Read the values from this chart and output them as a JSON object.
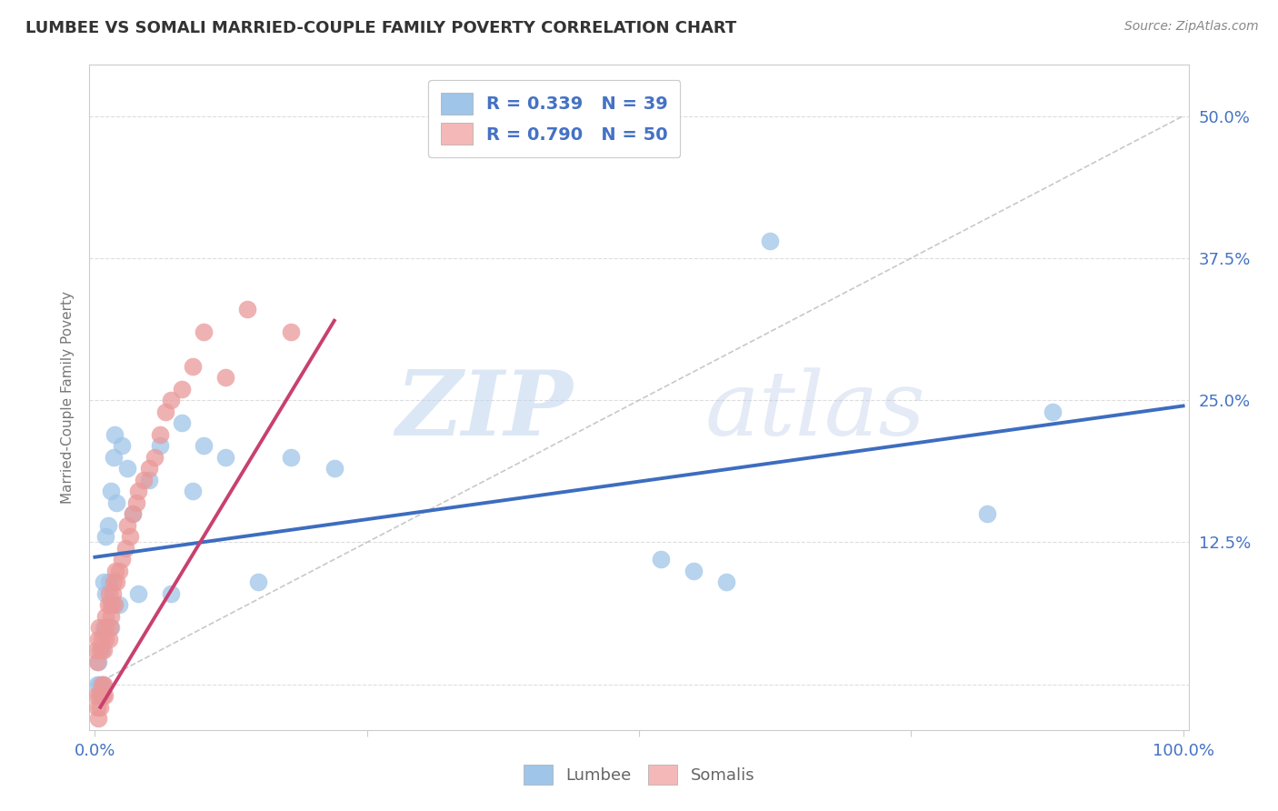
{
  "title": "LUMBEE VS SOMALI MARRIED-COUPLE FAMILY POVERTY CORRELATION CHART",
  "source_text": "Source: ZipAtlas.com",
  "ylabel": "Married-Couple Family Poverty",
  "xlim": [
    -0.005,
    1.005
  ],
  "ylim": [
    -0.04,
    0.545
  ],
  "ytick_positions": [
    0.0,
    0.125,
    0.25,
    0.375,
    0.5
  ],
  "yticklabels_right": [
    "",
    "12.5%",
    "25.0%",
    "37.5%",
    "50.0%"
  ],
  "xtick_positions": [
    0.0,
    0.25,
    0.5,
    0.75,
    1.0
  ],
  "xticklabels": [
    "0.0%",
    "",
    "",
    "",
    "100.0%"
  ],
  "legend_lumbee": "R = 0.339   N = 39",
  "legend_somali": "R = 0.790   N = 50",
  "watermark_zip": "ZIP",
  "watermark_atlas": "atlas",
  "lumbee_color": "#9fc5e8",
  "somali_color": "#ea9999",
  "lumbee_line_color": "#3d6dbf",
  "somali_line_color": "#c94070",
  "ref_line_color": "#bbbbbb",
  "grid_color": "#dddddd",
  "background_color": "#ffffff",
  "tick_color": "#4472c4",
  "lumbee_x": [
    0.002,
    0.003,
    0.004,
    0.005,
    0.006,
    0.007,
    0.008,
    0.008,
    0.01,
    0.01,
    0.012,
    0.013,
    0.015,
    0.015,
    0.016,
    0.017,
    0.018,
    0.02,
    0.022,
    0.025,
    0.03,
    0.035,
    0.04,
    0.05,
    0.06,
    0.07,
    0.08,
    0.09,
    0.1,
    0.12,
    0.15,
    0.18,
    0.22,
    0.52,
    0.55,
    0.58,
    0.62,
    0.82,
    0.88
  ],
  "lumbee_y": [
    0.0,
    0.02,
    0.0,
    -0.01,
    0.03,
    0.0,
    0.05,
    0.09,
    0.08,
    0.13,
    0.14,
    0.09,
    0.05,
    0.17,
    0.07,
    0.2,
    0.22,
    0.16,
    0.07,
    0.21,
    0.19,
    0.15,
    0.08,
    0.18,
    0.21,
    0.08,
    0.23,
    0.17,
    0.21,
    0.2,
    0.09,
    0.2,
    0.19,
    0.11,
    0.1,
    0.09,
    0.39,
    0.15,
    0.24
  ],
  "somali_x": [
    0.001,
    0.001,
    0.002,
    0.002,
    0.003,
    0.003,
    0.004,
    0.004,
    0.005,
    0.005,
    0.006,
    0.006,
    0.007,
    0.008,
    0.008,
    0.009,
    0.01,
    0.01,
    0.01,
    0.012,
    0.013,
    0.013,
    0.014,
    0.015,
    0.015,
    0.016,
    0.017,
    0.018,
    0.019,
    0.02,
    0.022,
    0.025,
    0.028,
    0.03,
    0.032,
    0.035,
    0.038,
    0.04,
    0.045,
    0.05,
    0.055,
    0.06,
    0.065,
    0.07,
    0.08,
    0.09,
    0.1,
    0.12,
    0.14,
    0.18
  ],
  "somali_y": [
    -0.01,
    0.03,
    -0.02,
    0.02,
    -0.03,
    0.04,
    -0.01,
    0.05,
    -0.02,
    0.03,
    0.0,
    0.04,
    -0.01,
    0.0,
    0.03,
    -0.01,
    0.04,
    0.05,
    0.06,
    0.07,
    0.04,
    0.08,
    0.05,
    0.06,
    0.07,
    0.08,
    0.09,
    0.07,
    0.1,
    0.09,
    0.1,
    0.11,
    0.12,
    0.14,
    0.13,
    0.15,
    0.16,
    0.17,
    0.18,
    0.19,
    0.2,
    0.22,
    0.24,
    0.25,
    0.26,
    0.28,
    0.31,
    0.27,
    0.33,
    0.31
  ],
  "lumbee_trendline_x": [
    0.0,
    1.0
  ],
  "lumbee_trendline_y": [
    0.112,
    0.245
  ],
  "somali_trendline_x": [
    0.005,
    0.22
  ],
  "somali_trendline_y": [
    -0.02,
    0.32
  ]
}
